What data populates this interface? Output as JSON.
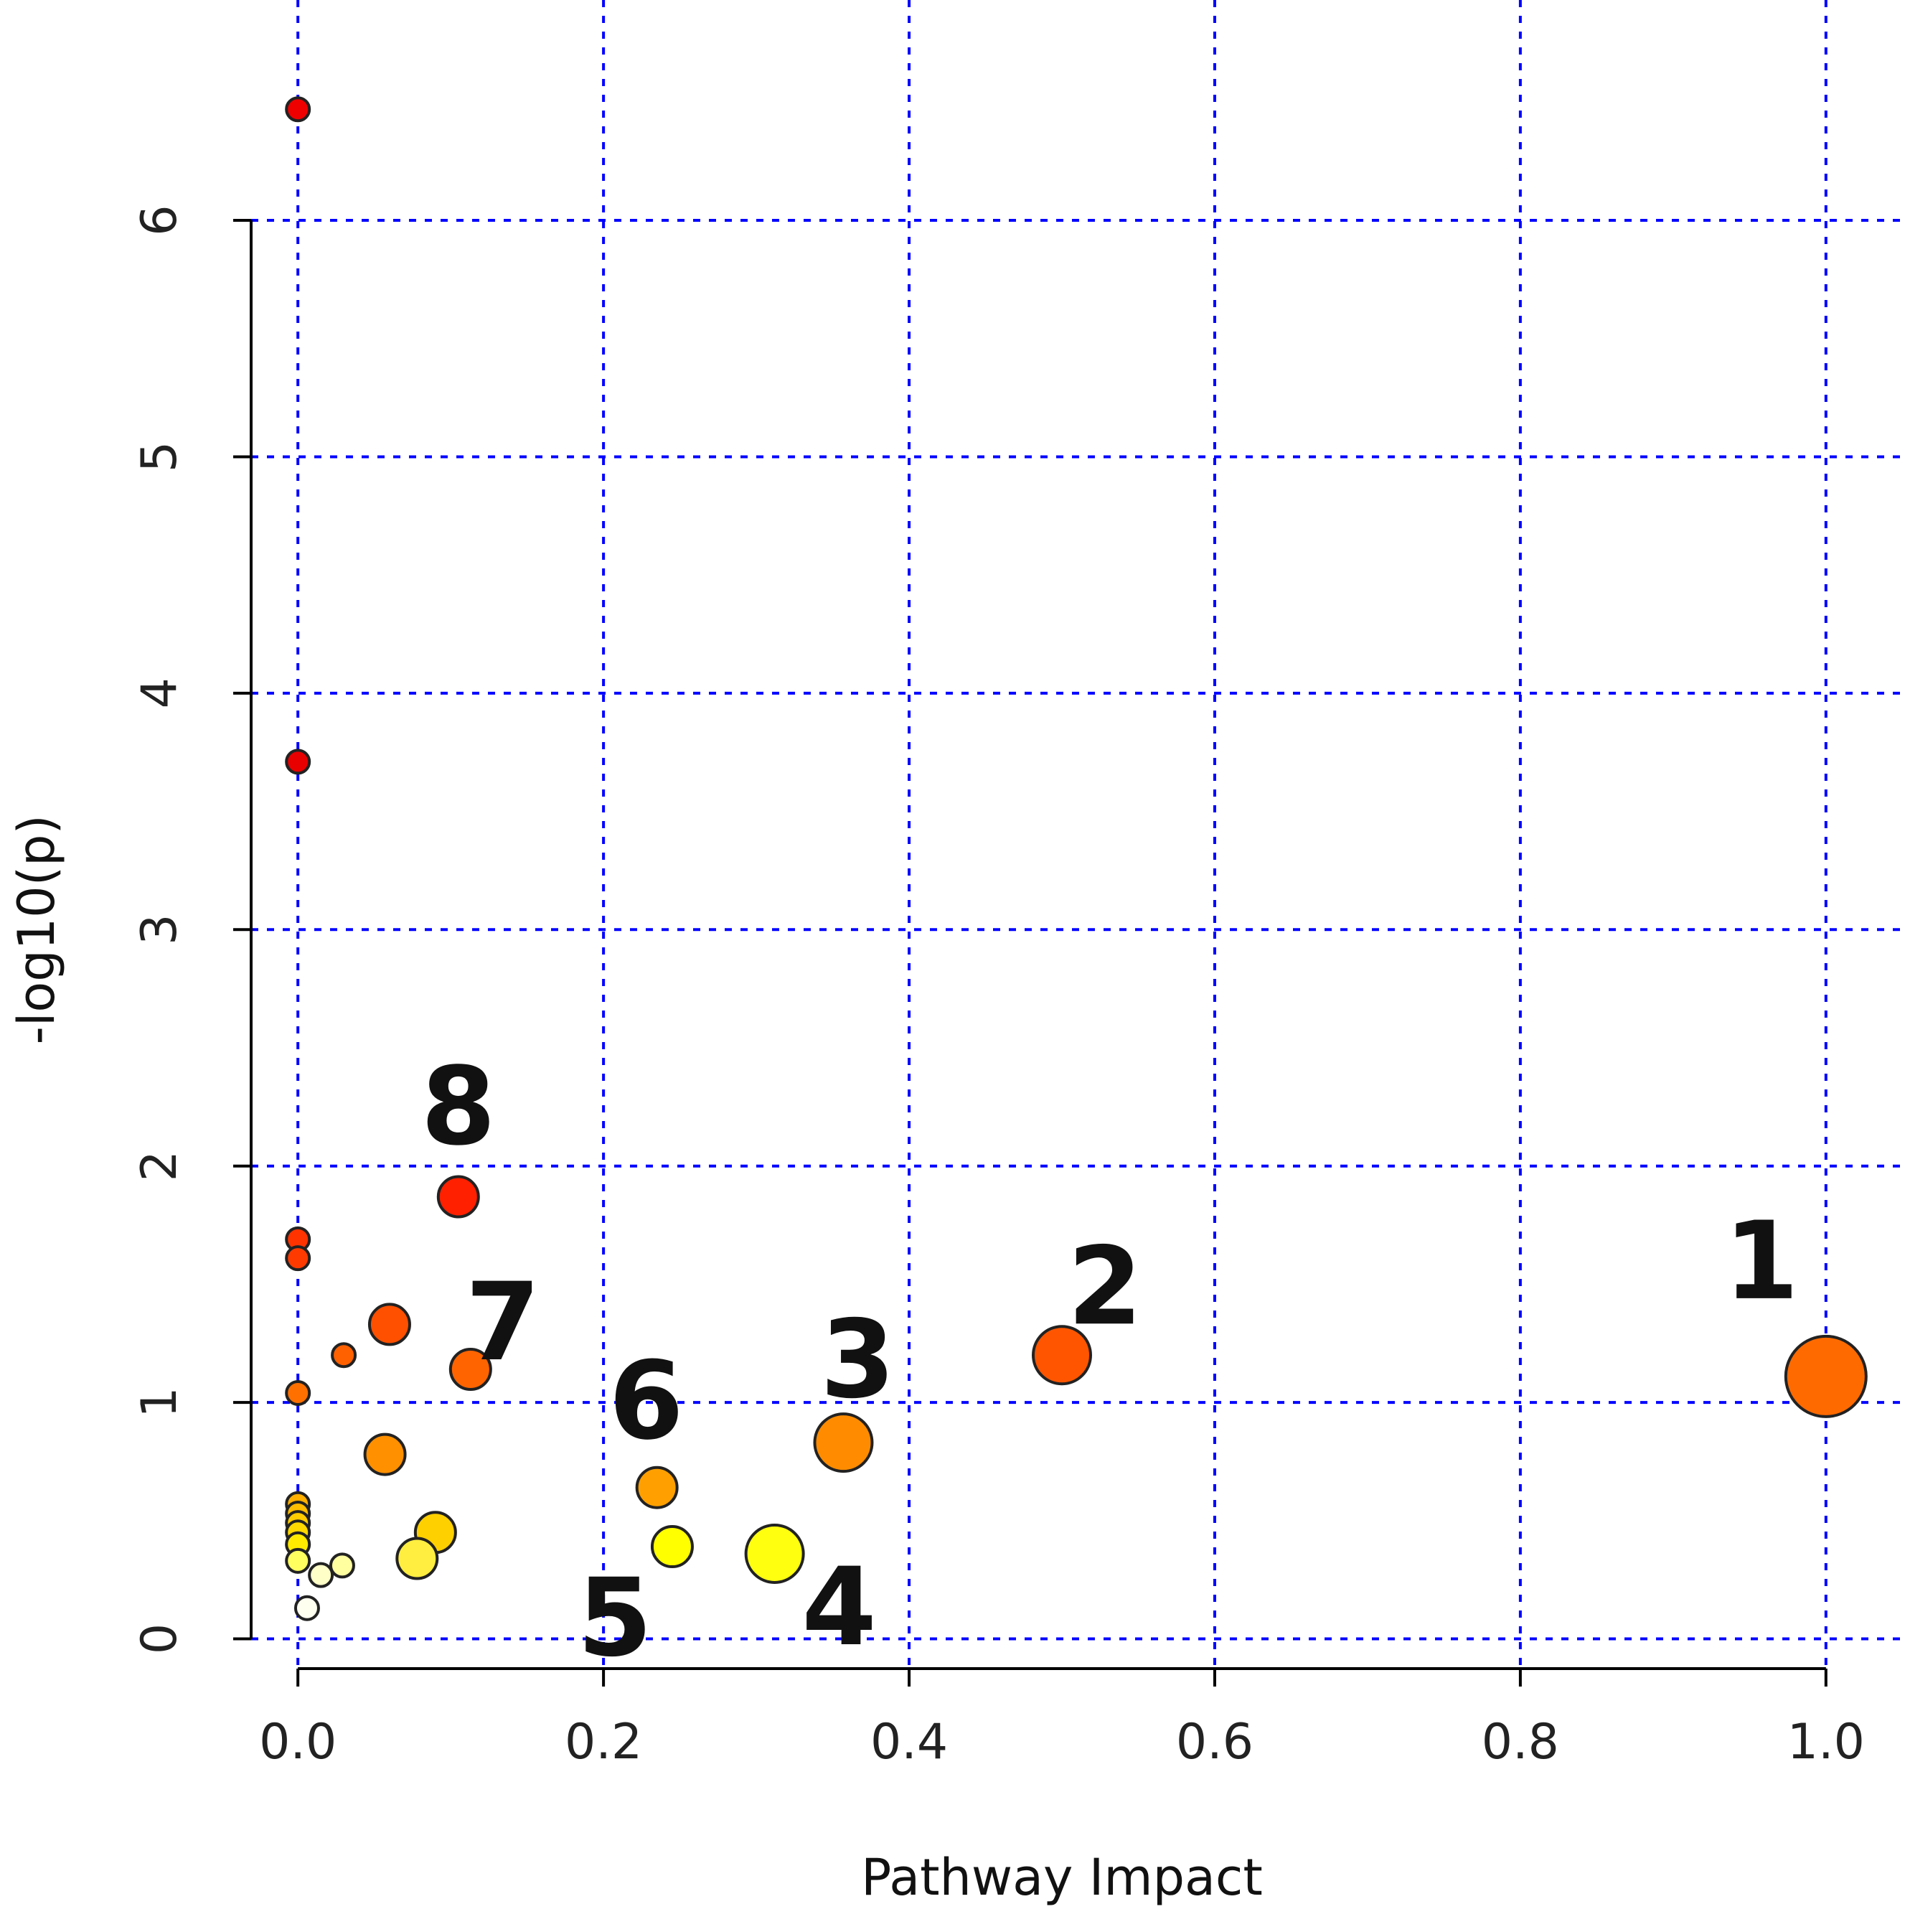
{
  "chart_data": {
    "type": "scatter",
    "title": "",
    "xlabel": "Pathway Impact",
    "ylabel": "-log10(p)",
    "xlim": [
      -0.04,
      1.04
    ],
    "ylim": [
      -0.05,
      6.75
    ],
    "x_ticks": [
      0.0,
      0.2,
      0.4,
      0.6,
      0.8,
      1.0
    ],
    "x_tick_labels": [
      "0.0",
      "0.2",
      "0.4",
      "0.6",
      "0.8",
      "1.0"
    ],
    "y_ticks": [
      0,
      1,
      2,
      3,
      4,
      5,
      6
    ],
    "y_tick_labels": [
      "0",
      "1",
      "2",
      "3",
      "4",
      "5",
      "6"
    ],
    "grid": true,
    "grid_color": "#0000ff",
    "legend": "none",
    "color_scale": [
      "#ffffe0",
      "#ffff00",
      "#ffa500",
      "#ff4500",
      "#ff0000"
    ],
    "points": [
      {
        "x": 0.0,
        "y": 6.47,
        "size": "small",
        "color": "#ee0000",
        "label": ""
      },
      {
        "x": 0.0,
        "y": 3.71,
        "size": "small",
        "color": "#e80000",
        "label": ""
      },
      {
        "x": 0.105,
        "y": 1.87,
        "size": "medium",
        "color": "#ff2000",
        "label": "8"
      },
      {
        "x": 0.0,
        "y": 1.69,
        "size": "small",
        "color": "#ff3300",
        "label": ""
      },
      {
        "x": 0.0,
        "y": 1.61,
        "size": "small",
        "color": "#ff3a00",
        "label": ""
      },
      {
        "x": 0.06,
        "y": 1.33,
        "size": "medium",
        "color": "#ff5000",
        "label": ""
      },
      {
        "x": 0.5,
        "y": 1.2,
        "size": "large",
        "color": "#ff5500",
        "label": "2"
      },
      {
        "x": 0.03,
        "y": 1.2,
        "size": "small",
        "color": "#ff6000",
        "label": ""
      },
      {
        "x": 0.113,
        "y": 1.14,
        "size": "medium",
        "color": "#ff6400",
        "label": "7"
      },
      {
        "x": 1.0,
        "y": 1.11,
        "size": "xlarge",
        "color": "#ff6a00",
        "label": "1"
      },
      {
        "x": 0.0,
        "y": 1.04,
        "size": "small",
        "color": "#ff7000",
        "label": ""
      },
      {
        "x": 0.357,
        "y": 0.83,
        "size": "large",
        "color": "#ff8c00",
        "label": "3"
      },
      {
        "x": 0.057,
        "y": 0.78,
        "size": "medium",
        "color": "#ff9000",
        "label": ""
      },
      {
        "x": 0.235,
        "y": 0.64,
        "size": "medium",
        "color": "#ffa000",
        "label": "6"
      },
      {
        "x": 0.0,
        "y": 0.57,
        "size": "small",
        "color": "#ffb000",
        "label": ""
      },
      {
        "x": 0.0,
        "y": 0.53,
        "size": "small",
        "color": "#ffbe00",
        "label": ""
      },
      {
        "x": 0.0,
        "y": 0.49,
        "size": "small",
        "color": "#ffcc00",
        "label": ""
      },
      {
        "x": 0.0,
        "y": 0.45,
        "size": "small",
        "color": "#ffd800",
        "label": ""
      },
      {
        "x": 0.09,
        "y": 0.45,
        "size": "medium",
        "color": "#ffd000",
        "label": ""
      },
      {
        "x": 0.0,
        "y": 0.4,
        "size": "small",
        "color": "#ffea00",
        "label": ""
      },
      {
        "x": 0.245,
        "y": 0.39,
        "size": "medium",
        "color": "#ffff00",
        "label": "5"
      },
      {
        "x": 0.312,
        "y": 0.36,
        "size": "large",
        "color": "#ffff10",
        "label": "4"
      },
      {
        "x": 0.078,
        "y": 0.34,
        "size": "medium",
        "color": "#ffee40",
        "label": ""
      },
      {
        "x": 0.0,
        "y": 0.33,
        "size": "small",
        "color": "#ffff60",
        "label": ""
      },
      {
        "x": 0.029,
        "y": 0.31,
        "size": "small",
        "color": "#ffffa0",
        "label": ""
      },
      {
        "x": 0.015,
        "y": 0.27,
        "size": "small",
        "color": "#ffffc8",
        "label": ""
      },
      {
        "x": 0.006,
        "y": 0.13,
        "size": "small",
        "color": "#fffff0",
        "label": ""
      }
    ]
  }
}
